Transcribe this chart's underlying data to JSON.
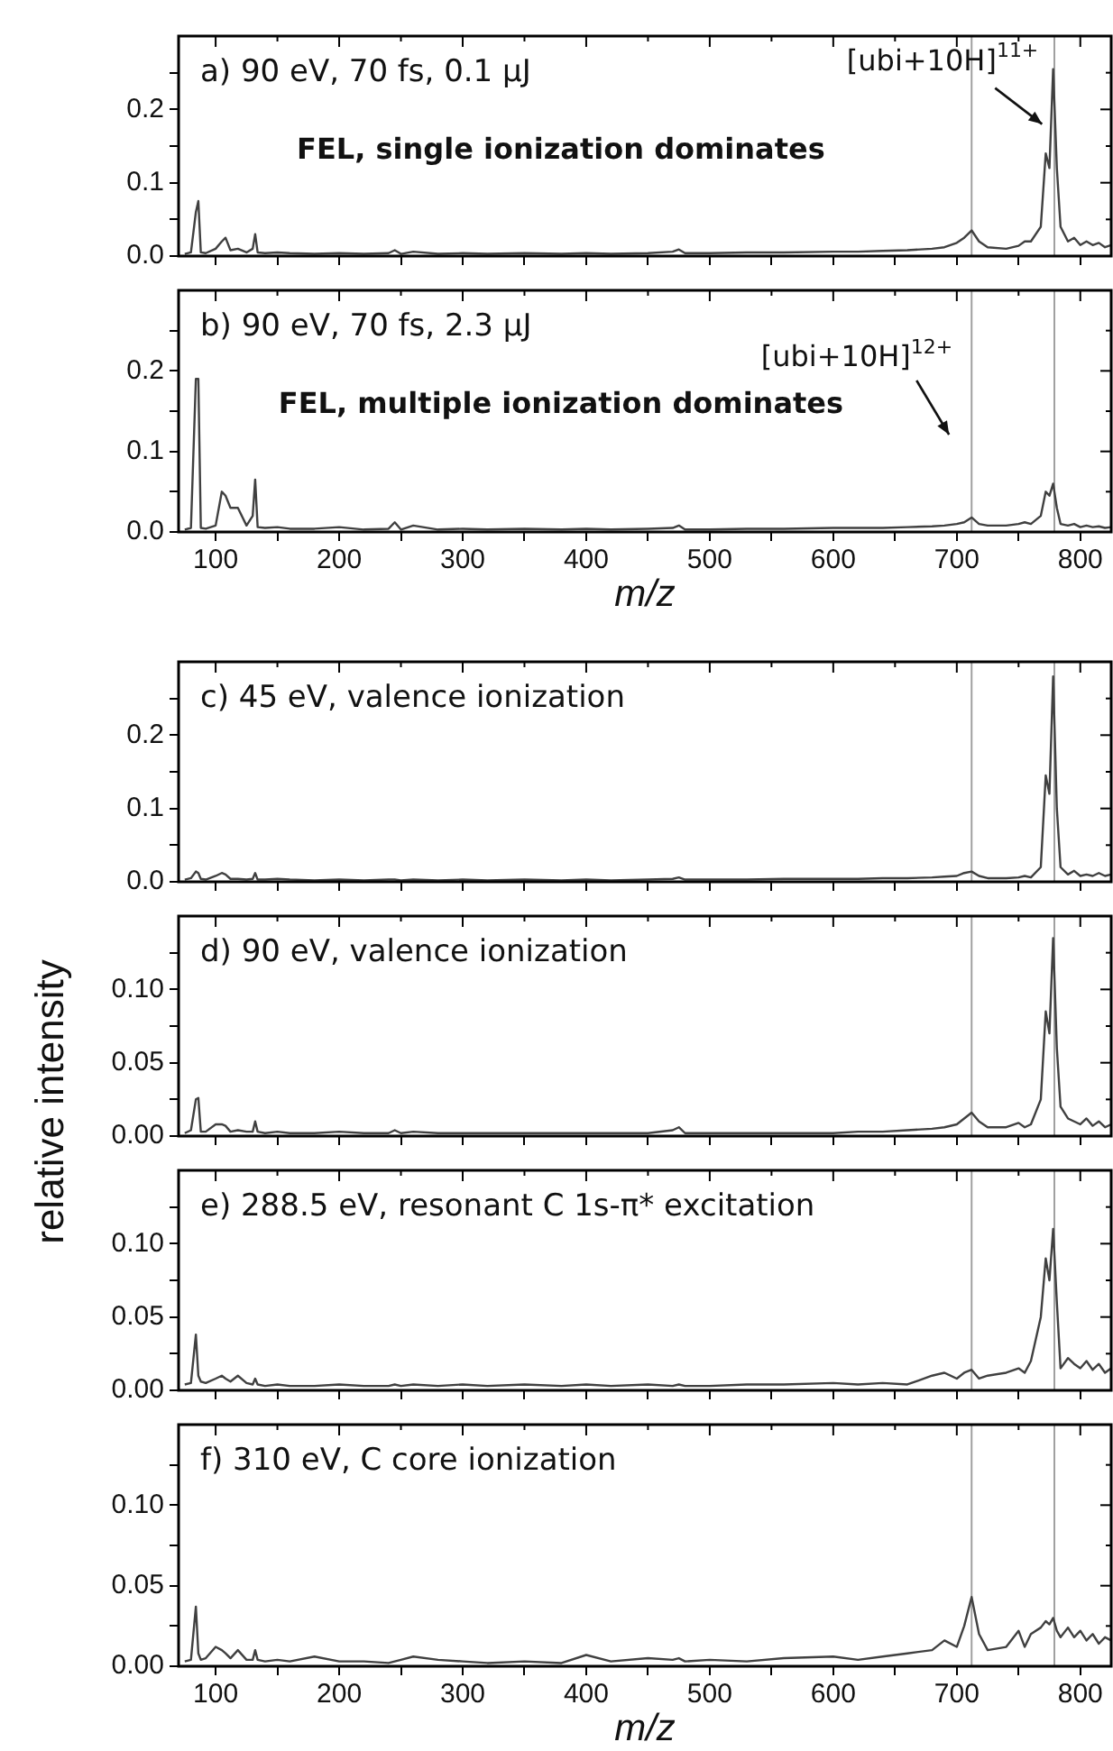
{
  "chart_data": [
    {
      "type": "line",
      "x": [
        75,
        80,
        84,
        86,
        88,
        92,
        100,
        105,
        108,
        112,
        118,
        125,
        130,
        132,
        134,
        140,
        150,
        160,
        180,
        200,
        220,
        240,
        245,
        250,
        260,
        280,
        300,
        320,
        350,
        380,
        400,
        420,
        450,
        470,
        475,
        480,
        500,
        530,
        560,
        600,
        620,
        640,
        660,
        680,
        690,
        700,
        706,
        712,
        718,
        725,
        740,
        750,
        755,
        760,
        768,
        772,
        775,
        778,
        781,
        784,
        790,
        795,
        800,
        805,
        810,
        815,
        820,
        825
      ],
      "series": [
        {
          "color": "#404040",
          "values": [
            0.003,
            0.005,
            0.06,
            0.075,
            0.005,
            0.004,
            0.01,
            0.02,
            0.025,
            0.008,
            0.01,
            0.005,
            0.01,
            0.03,
            0.005,
            0.004,
            0.005,
            0.004,
            0.003,
            0.004,
            0.003,
            0.004,
            0.008,
            0.003,
            0.006,
            0.003,
            0.004,
            0.003,
            0.004,
            0.003,
            0.004,
            0.003,
            0.004,
            0.006,
            0.009,
            0.004,
            0.004,
            0.005,
            0.005,
            0.006,
            0.006,
            0.007,
            0.008,
            0.01,
            0.012,
            0.018,
            0.025,
            0.035,
            0.02,
            0.012,
            0.01,
            0.014,
            0.02,
            0.02,
            0.04,
            0.14,
            0.12,
            0.255,
            0.12,
            0.04,
            0.02,
            0.025,
            0.015,
            0.02,
            0.015,
            0.018,
            0.012,
            0.015
          ]
        }
      ],
      "xlim": [
        70,
        825
      ],
      "xticks": [
        100,
        {
          "value": 150,
          "label": null
        },
        200,
        {
          "value": 250,
          "label": null
        },
        300,
        {
          "value": 350,
          "label": null
        },
        400,
        {
          "value": 450,
          "label": null
        },
        500,
        {
          "value": 550,
          "label": null
        },
        600,
        {
          "value": 650,
          "label": null
        },
        700,
        {
          "value": 750,
          "label": null
        },
        800
      ],
      "ylim": [
        0,
        0.3
      ],
      "yticks": [
        {
          "value": 0,
          "label": "0.0"
        },
        {
          "value": 0.05,
          "label": null
        },
        {
          "value": 0.1,
          "label": "0.1"
        },
        {
          "value": 0.15,
          "label": null
        },
        {
          "value": 0.2,
          "label": "0.2"
        },
        {
          "value": 0.25,
          "label": null
        }
      ],
      "tick_labels": "y",
      "marker": "none",
      "ref_lines": [
        {
          "axis": "x",
          "value": 712,
          "color": "#a0a0a0"
        },
        {
          "axis": "x",
          "value": 779,
          "color": "#a0a0a0"
        }
      ],
      "annotations": [
        "a) 90 eV, 70 fs, 0.1 μJ",
        "FEL, single ionization dominates",
        {
          "text": "[ubi+10H]$^{11+}$",
          "x": 769,
          "y": 0.18
        }
      ]
    },
    {
      "type": "line",
      "x": [
        75,
        80,
        84,
        86,
        88,
        92,
        100,
        105,
        108,
        112,
        118,
        125,
        130,
        132,
        134,
        140,
        150,
        160,
        180,
        200,
        220,
        240,
        245,
        250,
        260,
        280,
        300,
        320,
        350,
        380,
        400,
        420,
        450,
        470,
        475,
        480,
        500,
        530,
        560,
        600,
        620,
        640,
        660,
        680,
        690,
        700,
        706,
        712,
        718,
        725,
        740,
        750,
        755,
        760,
        768,
        772,
        775,
        778,
        781,
        784,
        790,
        795,
        800,
        805,
        810,
        815,
        820,
        825
      ],
      "series": [
        {
          "color": "#404040",
          "values": [
            0.003,
            0.005,
            0.19,
            0.19,
            0.005,
            0.004,
            0.008,
            0.05,
            0.045,
            0.03,
            0.03,
            0.008,
            0.02,
            0.065,
            0.006,
            0.005,
            0.006,
            0.004,
            0.004,
            0.006,
            0.003,
            0.004,
            0.012,
            0.003,
            0.008,
            0.003,
            0.004,
            0.003,
            0.004,
            0.003,
            0.004,
            0.003,
            0.004,
            0.005,
            0.008,
            0.003,
            0.003,
            0.004,
            0.004,
            0.005,
            0.005,
            0.005,
            0.006,
            0.007,
            0.008,
            0.01,
            0.012,
            0.018,
            0.01,
            0.008,
            0.008,
            0.01,
            0.012,
            0.01,
            0.02,
            0.05,
            0.045,
            0.06,
            0.03,
            0.01,
            0.008,
            0.01,
            0.006,
            0.008,
            0.006,
            0.007,
            0.005,
            0.006
          ]
        }
      ],
      "xlim": [
        70,
        825
      ],
      "xticks": [
        100,
        {
          "value": 150,
          "label": null
        },
        200,
        {
          "value": 250,
          "label": null
        },
        300,
        {
          "value": 350,
          "label": null
        },
        400,
        {
          "value": 450,
          "label": null
        },
        500,
        {
          "value": 550,
          "label": null
        },
        600,
        {
          "value": 650,
          "label": null
        },
        700,
        {
          "value": 750,
          "label": null
        },
        800
      ],
      "ylim": [
        0,
        0.3
      ],
      "yticks": [
        {
          "value": 0,
          "label": "0.0"
        },
        {
          "value": 0.05,
          "label": null
        },
        {
          "value": 0.1,
          "label": "0.1"
        },
        {
          "value": 0.15,
          "label": null
        },
        {
          "value": 0.2,
          "label": "0.2"
        },
        {
          "value": 0.25,
          "label": null
        }
      ],
      "xlabel": "m/z",
      "marker": "none",
      "ref_lines": [
        {
          "axis": "x",
          "value": 712,
          "color": "#a0a0a0"
        },
        {
          "axis": "x",
          "value": 779,
          "color": "#a0a0a0"
        }
      ],
      "annotations": [
        "b) 90 eV, 70 fs, 2.3 μJ",
        "FEL, multiple ionization dominates",
        "[ubi+10H]$^{12+}$"
      ]
    },
    {
      "type": "line",
      "x": [
        75,
        80,
        84,
        86,
        88,
        92,
        100,
        105,
        108,
        112,
        118,
        125,
        130,
        132,
        134,
        140,
        150,
        160,
        180,
        200,
        220,
        240,
        245,
        250,
        260,
        280,
        300,
        320,
        350,
        380,
        400,
        420,
        450,
        470,
        475,
        480,
        500,
        530,
        560,
        600,
        620,
        640,
        660,
        680,
        690,
        700,
        706,
        712,
        718,
        725,
        740,
        750,
        755,
        760,
        768,
        772,
        775,
        778,
        781,
        784,
        790,
        795,
        800,
        805,
        810,
        815,
        820,
        825
      ],
      "series": [
        {
          "color": "#404040",
          "values": [
            0.003,
            0.005,
            0.014,
            0.012,
            0.004,
            0.003,
            0.008,
            0.012,
            0.01,
            0.004,
            0.004,
            0.003,
            0.004,
            0.012,
            0.003,
            0.003,
            0.004,
            0.003,
            0.002,
            0.003,
            0.002,
            0.003,
            0.003,
            0.002,
            0.003,
            0.002,
            0.003,
            0.002,
            0.003,
            0.002,
            0.003,
            0.002,
            0.003,
            0.004,
            0.006,
            0.003,
            0.003,
            0.003,
            0.004,
            0.004,
            0.004,
            0.005,
            0.005,
            0.006,
            0.007,
            0.008,
            0.012,
            0.014,
            0.008,
            0.005,
            0.005,
            0.006,
            0.008,
            0.006,
            0.02,
            0.145,
            0.12,
            0.28,
            0.1,
            0.02,
            0.01,
            0.015,
            0.008,
            0.01,
            0.008,
            0.012,
            0.008,
            0.01
          ]
        }
      ],
      "xlim": [
        70,
        825
      ],
      "xticks": [
        100,
        {
          "value": 150,
          "label": null
        },
        200,
        {
          "value": 250,
          "label": null
        },
        300,
        {
          "value": 350,
          "label": null
        },
        400,
        {
          "value": 450,
          "label": null
        },
        500,
        {
          "value": 550,
          "label": null
        },
        600,
        {
          "value": 650,
          "label": null
        },
        700,
        {
          "value": 750,
          "label": null
        },
        800
      ],
      "ylim": [
        0,
        0.3
      ],
      "yticks": [
        {
          "value": 0,
          "label": "0.0"
        },
        {
          "value": 0.05,
          "label": null
        },
        {
          "value": 0.1,
          "label": "0.1"
        },
        {
          "value": 0.15,
          "label": null
        },
        {
          "value": 0.2,
          "label": "0.2"
        },
        {
          "value": 0.25,
          "label": null
        }
      ],
      "tick_labels": "y",
      "marker": "none",
      "ref_lines": [
        {
          "axis": "x",
          "value": 712,
          "color": "#a0a0a0"
        },
        {
          "axis": "x",
          "value": 779,
          "color": "#a0a0a0"
        }
      ],
      "annotations": [
        "c) 45 eV, valence ionization"
      ]
    },
    {
      "type": "line",
      "x": [
        75,
        80,
        84,
        86,
        88,
        92,
        100,
        105,
        108,
        112,
        118,
        125,
        130,
        132,
        134,
        140,
        150,
        160,
        180,
        200,
        220,
        240,
        245,
        250,
        260,
        280,
        300,
        320,
        350,
        380,
        400,
        420,
        450,
        470,
        475,
        480,
        500,
        530,
        560,
        600,
        620,
        640,
        660,
        680,
        690,
        700,
        706,
        712,
        718,
        725,
        740,
        750,
        755,
        760,
        768,
        772,
        775,
        778,
        781,
        784,
        790,
        795,
        800,
        805,
        810,
        815,
        820,
        825
      ],
      "series": [
        {
          "color": "#404040",
          "values": [
            0.002,
            0.004,
            0.025,
            0.026,
            0.003,
            0.003,
            0.008,
            0.008,
            0.007,
            0.003,
            0.004,
            0.003,
            0.003,
            0.01,
            0.003,
            0.002,
            0.003,
            0.002,
            0.002,
            0.003,
            0.002,
            0.002,
            0.004,
            0.002,
            0.003,
            0.002,
            0.002,
            0.002,
            0.002,
            0.002,
            0.002,
            0.002,
            0.002,
            0.004,
            0.006,
            0.002,
            0.002,
            0.002,
            0.002,
            0.002,
            0.003,
            0.003,
            0.004,
            0.005,
            0.006,
            0.008,
            0.012,
            0.016,
            0.01,
            0.006,
            0.006,
            0.009,
            0.006,
            0.008,
            0.025,
            0.085,
            0.07,
            0.135,
            0.06,
            0.02,
            0.012,
            0.01,
            0.008,
            0.012,
            0.007,
            0.01,
            0.006,
            0.008
          ]
        }
      ],
      "xlim": [
        70,
        825
      ],
      "xticks": [
        100,
        {
          "value": 150,
          "label": null
        },
        200,
        {
          "value": 250,
          "label": null
        },
        300,
        {
          "value": 350,
          "label": null
        },
        400,
        {
          "value": 450,
          "label": null
        },
        500,
        {
          "value": 550,
          "label": null
        },
        600,
        {
          "value": 650,
          "label": null
        },
        700,
        {
          "value": 750,
          "label": null
        },
        800
      ],
      "ylim": [
        0,
        0.15
      ],
      "yticks": [
        {
          "value": 0,
          "label": "0.00"
        },
        {
          "value": 0.025,
          "label": null
        },
        {
          "value": 0.05,
          "label": "0.05"
        },
        {
          "value": 0.075,
          "label": null
        },
        {
          "value": 0.1,
          "label": "0.10"
        },
        {
          "value": 0.125,
          "label": null
        }
      ],
      "tick_labels": "y",
      "marker": "none",
      "ylabel": "relative intensity",
      "ref_lines": [
        {
          "axis": "x",
          "value": 712,
          "color": "#a0a0a0"
        },
        {
          "axis": "x",
          "value": 779,
          "color": "#a0a0a0"
        }
      ],
      "annotations": [
        "d) 90 eV, valence ionization"
      ]
    },
    {
      "type": "line",
      "x": [
        75,
        80,
        84,
        86,
        88,
        92,
        100,
        105,
        108,
        112,
        118,
        125,
        130,
        132,
        134,
        140,
        150,
        160,
        180,
        200,
        220,
        240,
        245,
        250,
        260,
        280,
        300,
        320,
        350,
        380,
        400,
        420,
        450,
        470,
        475,
        480,
        500,
        530,
        560,
        600,
        620,
        640,
        660,
        680,
        690,
        700,
        706,
        712,
        718,
        725,
        740,
        750,
        755,
        760,
        768,
        772,
        775,
        778,
        781,
        784,
        790,
        795,
        800,
        805,
        810,
        815,
        820,
        825
      ],
      "series": [
        {
          "color": "#404040",
          "values": [
            0.004,
            0.005,
            0.038,
            0.01,
            0.006,
            0.005,
            0.008,
            0.01,
            0.008,
            0.006,
            0.01,
            0.005,
            0.004,
            0.008,
            0.004,
            0.003,
            0.004,
            0.003,
            0.003,
            0.004,
            0.003,
            0.003,
            0.004,
            0.003,
            0.004,
            0.003,
            0.004,
            0.003,
            0.004,
            0.003,
            0.004,
            0.003,
            0.004,
            0.003,
            0.004,
            0.003,
            0.003,
            0.004,
            0.004,
            0.005,
            0.004,
            0.005,
            0.004,
            0.01,
            0.012,
            0.008,
            0.012,
            0.014,
            0.008,
            0.01,
            0.012,
            0.015,
            0.012,
            0.02,
            0.05,
            0.09,
            0.075,
            0.11,
            0.06,
            0.015,
            0.022,
            0.018,
            0.015,
            0.02,
            0.014,
            0.018,
            0.012,
            0.015
          ]
        }
      ],
      "xlim": [
        70,
        825
      ],
      "xticks": [
        100,
        {
          "value": 150,
          "label": null
        },
        200,
        {
          "value": 250,
          "label": null
        },
        300,
        {
          "value": 350,
          "label": null
        },
        400,
        {
          "value": 450,
          "label": null
        },
        500,
        {
          "value": 550,
          "label": null
        },
        600,
        {
          "value": 650,
          "label": null
        },
        700,
        {
          "value": 750,
          "label": null
        },
        800
      ],
      "ylim": [
        0,
        0.15
      ],
      "yticks": [
        {
          "value": 0,
          "label": "0.00"
        },
        {
          "value": 0.025,
          "label": null
        },
        {
          "value": 0.05,
          "label": "0.05"
        },
        {
          "value": 0.075,
          "label": null
        },
        {
          "value": 0.1,
          "label": "0.10"
        },
        {
          "value": 0.125,
          "label": null
        }
      ],
      "tick_labels": "y",
      "marker": "none",
      "ref_lines": [
        {
          "axis": "x",
          "value": 712,
          "color": "#a0a0a0"
        },
        {
          "axis": "x",
          "value": 779,
          "color": "#a0a0a0"
        }
      ],
      "annotations": [
        "e) 288.5 eV, resonant C 1s-π* excitation"
      ]
    },
    {
      "type": "line",
      "x": [
        75,
        80,
        84,
        86,
        88,
        92,
        100,
        105,
        108,
        112,
        118,
        125,
        130,
        132,
        134,
        140,
        150,
        160,
        180,
        200,
        220,
        240,
        245,
        250,
        260,
        280,
        300,
        320,
        350,
        380,
        400,
        420,
        450,
        470,
        475,
        480,
        500,
        530,
        560,
        600,
        620,
        640,
        660,
        680,
        690,
        700,
        706,
        712,
        718,
        725,
        740,
        750,
        755,
        760,
        768,
        772,
        775,
        778,
        781,
        784,
        790,
        795,
        800,
        805,
        810,
        815,
        820,
        825
      ],
      "series": [
        {
          "color": "#404040",
          "values": [
            0.003,
            0.004,
            0.037,
            0.008,
            0.004,
            0.005,
            0.012,
            0.01,
            0.008,
            0.005,
            0.01,
            0.004,
            0.004,
            0.01,
            0.004,
            0.003,
            0.004,
            0.003,
            0.006,
            0.003,
            0.003,
            0.002,
            0.003,
            0.004,
            0.006,
            0.004,
            0.003,
            0.002,
            0.003,
            0.002,
            0.007,
            0.003,
            0.005,
            0.004,
            0.005,
            0.003,
            0.004,
            0.003,
            0.005,
            0.006,
            0.004,
            0.006,
            0.008,
            0.01,
            0.016,
            0.012,
            0.025,
            0.043,
            0.02,
            0.01,
            0.012,
            0.022,
            0.012,
            0.02,
            0.024,
            0.028,
            0.026,
            0.03,
            0.022,
            0.018,
            0.024,
            0.018,
            0.022,
            0.016,
            0.02,
            0.014,
            0.018,
            0.016
          ]
        }
      ],
      "xlim": [
        70,
        825
      ],
      "xticks": [
        100,
        {
          "value": 150,
          "label": null
        },
        200,
        {
          "value": 250,
          "label": null
        },
        300,
        {
          "value": 350,
          "label": null
        },
        400,
        {
          "value": 450,
          "label": null
        },
        500,
        {
          "value": 550,
          "label": null
        },
        600,
        {
          "value": 650,
          "label": null
        },
        700,
        {
          "value": 750,
          "label": null
        },
        800
      ],
      "ylim": [
        0,
        0.15
      ],
      "yticks": [
        {
          "value": 0,
          "label": "0.00"
        },
        {
          "value": 0.025,
          "label": null
        },
        {
          "value": 0.05,
          "label": "0.05"
        },
        {
          "value": 0.075,
          "label": null
        },
        {
          "value": 0.1,
          "label": "0.10"
        },
        {
          "value": 0.125,
          "label": null
        }
      ],
      "xlabel": "m/z",
      "marker": "none",
      "ref_lines": [
        {
          "axis": "x",
          "value": 712,
          "color": "#a0a0a0"
        },
        {
          "axis": "x",
          "value": 779,
          "color": "#a0a0a0"
        }
      ],
      "annotations": [
        "f) 310 eV, C core ionization"
      ]
    }
  ]
}
